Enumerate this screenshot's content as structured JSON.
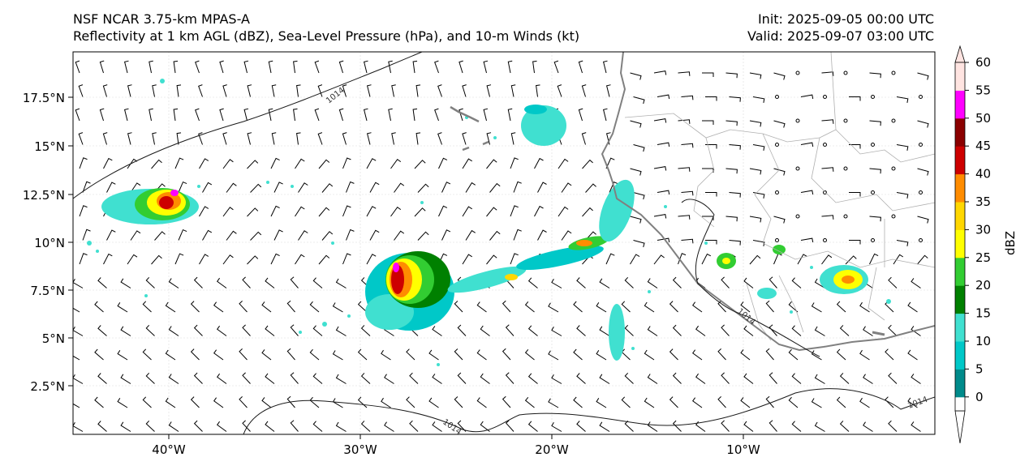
{
  "header": {
    "model": "NSF NCAR 3.75-km MPAS-A",
    "fields": "Reflectivity at 1 km AGL (dBZ), Sea-Level Pressure (hPa), and 10-m Winds (kt)",
    "init": "Init: 2025-09-05 00:00 UTC",
    "valid": "Valid: 2025-09-07 03:00 UTC"
  },
  "map": {
    "lat_labels": [
      "17.5°N",
      "15°N",
      "12.5°N",
      "10°N",
      "7.5°N",
      "5°N",
      "2.5°N"
    ],
    "lon_labels": [
      "40°W",
      "30°W",
      "20°W",
      "10°W"
    ],
    "isobar_label": "1014",
    "colors": {
      "coastline": "#808080",
      "borders": "#b0b0b0",
      "isobar": "#1a1a1a",
      "barb": "#000000"
    }
  },
  "colorbar": {
    "label": "dBZ",
    "ticks": [
      "0",
      "5",
      "10",
      "15",
      "20",
      "25",
      "30",
      "35",
      "40",
      "45",
      "50",
      "55",
      "60"
    ],
    "colors": [
      "#008b8b",
      "#00c8c8",
      "#40e0d0",
      "#008000",
      "#32cd32",
      "#ffff00",
      "#ffd700",
      "#ff8c00",
      "#cd0000",
      "#8b0000",
      "#ff00ff",
      "#ffe4e1"
    ]
  }
}
